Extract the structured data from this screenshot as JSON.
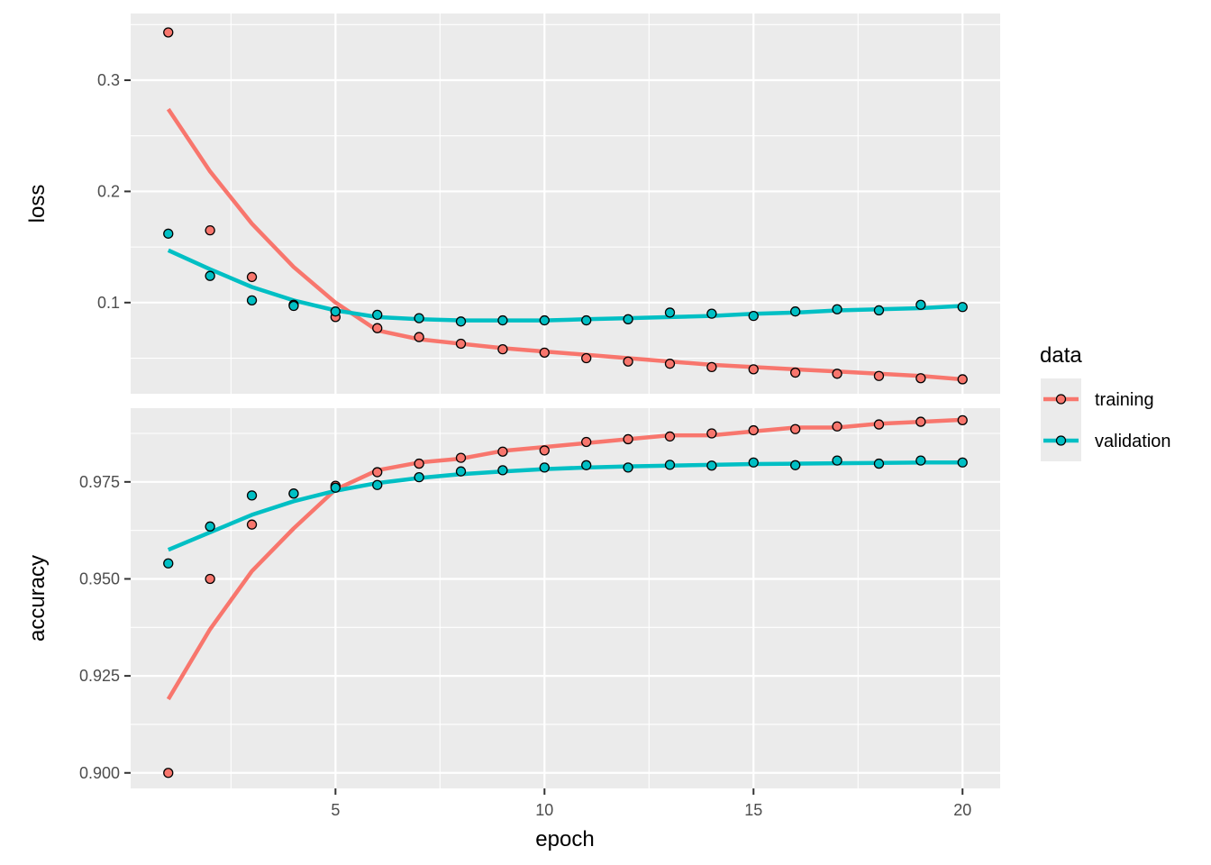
{
  "chart_data": {
    "type": "line",
    "xlabel": "epoch",
    "x_ticks": [
      5,
      10,
      15,
      20
    ],
    "x": [
      1,
      2,
      3,
      4,
      5,
      6,
      7,
      8,
      9,
      10,
      11,
      12,
      13,
      14,
      15,
      16,
      17,
      18,
      19,
      20
    ],
    "xlim": [
      0.1,
      20.9
    ],
    "legend": {
      "title": "data",
      "placement": "right",
      "entries": [
        "training",
        "validation"
      ]
    },
    "colors": {
      "training": "#f8766d",
      "validation": "#00bfc4"
    },
    "grid": true,
    "panels": [
      {
        "ylabel": "loss",
        "ylim": [
          0.018,
          0.36
        ],
        "y_ticks": [
          0.1,
          0.2,
          0.3
        ],
        "y_tick_labels": [
          "0.1",
          "0.2",
          "0.3"
        ],
        "series": [
          {
            "name": "training",
            "values": [
              0.343,
              0.165,
              0.123,
              0.098,
              0.087,
              0.077,
              0.069,
              0.063,
              0.058,
              0.055,
              0.05,
              0.047,
              0.045,
              0.042,
              0.04,
              0.037,
              0.036,
              0.034,
              0.032,
              0.031
            ],
            "smooth": [
              0.274,
              0.218,
              0.171,
              0.132,
              0.1,
              0.075,
              0.067,
              0.063,
              0.059,
              0.056,
              0.053,
              0.05,
              0.047,
              0.044,
              0.042,
              0.04,
              0.038,
              0.036,
              0.034,
              0.031
            ]
          },
          {
            "name": "validation",
            "values": [
              0.162,
              0.124,
              0.102,
              0.097,
              0.092,
              0.089,
              0.086,
              0.083,
              0.084,
              0.084,
              0.084,
              0.085,
              0.091,
              0.09,
              0.088,
              0.092,
              0.094,
              0.093,
              0.098,
              0.096
            ],
            "smooth": [
              0.147,
              0.13,
              0.114,
              0.102,
              0.093,
              0.087,
              0.085,
              0.084,
              0.084,
              0.084,
              0.085,
              0.086,
              0.087,
              0.088,
              0.09,
              0.091,
              0.093,
              0.094,
              0.095,
              0.097
            ]
          }
        ]
      },
      {
        "ylabel": "accuracy",
        "ylim": [
          0.896,
          0.994
        ],
        "y_ticks": [
          0.9,
          0.925,
          0.95,
          0.975
        ],
        "y_tick_labels": [
          "0.900",
          "0.925",
          "0.950",
          "0.975"
        ],
        "series": [
          {
            "name": "training",
            "values": [
              0.9,
              0.95,
              0.964,
              0.972,
              0.974,
              0.9775,
              0.9797,
              0.9812,
              0.9828,
              0.9831,
              0.9853,
              0.986,
              0.9867,
              0.9875,
              0.9883,
              0.9886,
              0.9893,
              0.9898,
              0.9905,
              0.9909
            ],
            "smooth": [
              0.919,
              0.937,
              0.952,
              0.963,
              0.973,
              0.978,
              0.98,
              0.981,
              0.983,
              0.984,
              0.985,
              0.986,
              0.987,
              0.987,
              0.988,
              0.989,
              0.989,
              0.99,
              0.9905,
              0.991
            ]
          },
          {
            "name": "validation",
            "values": [
              0.954,
              0.9635,
              0.9715,
              0.972,
              0.9735,
              0.9742,
              0.9762,
              0.9777,
              0.978,
              0.9787,
              0.9793,
              0.9787,
              0.9794,
              0.9792,
              0.98,
              0.9793,
              0.9805,
              0.9797,
              0.9805,
              0.98
            ],
            "smooth": [
              0.9575,
              0.962,
              0.9665,
              0.97,
              0.9727,
              0.9747,
              0.976,
              0.977,
              0.9777,
              0.9783,
              0.9787,
              0.979,
              0.9792,
              0.9794,
              0.9796,
              0.9797,
              0.9798,
              0.9799,
              0.98,
              0.98
            ]
          }
        ]
      }
    ]
  }
}
